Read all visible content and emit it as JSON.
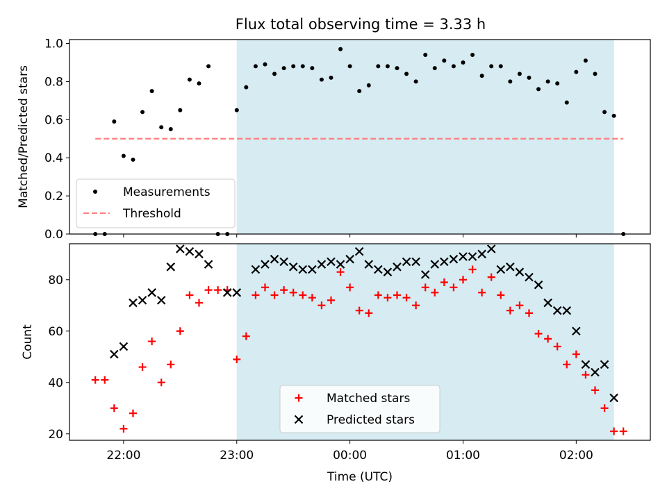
{
  "figure": {
    "title": "Flux total observing time = 3.33 h"
  },
  "chart_data": [
    {
      "type": "scatter",
      "ylabel": "Matched/Predicted stars",
      "ylim": [
        0,
        1.02
      ],
      "yticks": [
        "0.0",
        "0.2",
        "0.4",
        "0.6",
        "0.8",
        "1.0"
      ],
      "ytick_values": [
        0,
        0.2,
        0.4,
        0.6,
        0.8,
        1.0
      ],
      "grid": false,
      "legend_placement": "lower-left",
      "shaded_span": {
        "start_min": 60,
        "end_min": 260,
        "color": "#add8e6"
      },
      "series": [
        {
          "name": "Measurements",
          "marker": "dot",
          "color": "#000000",
          "x_min": [
            -15,
            -10,
            -5,
            0,
            5,
            10,
            15,
            20,
            25,
            30,
            35,
            40,
            45,
            50,
            55,
            60,
            65,
            70,
            75,
            80,
            85,
            90,
            95,
            100,
            105,
            110,
            115,
            120,
            125,
            130,
            135,
            140,
            145,
            150,
            155,
            160,
            165,
            170,
            175,
            180,
            185,
            190,
            195,
            200,
            205,
            210,
            215,
            220,
            225,
            230,
            235,
            240,
            245,
            250,
            255,
            260,
            265
          ],
          "values": [
            0,
            0,
            0.59,
            0.41,
            0.39,
            0.64,
            0.75,
            0.56,
            0.55,
            0.65,
            0.81,
            0.79,
            0.88,
            0,
            0,
            0.65,
            0.77,
            0.88,
            0.89,
            0.84,
            0.87,
            0.88,
            0.88,
            0.87,
            0.81,
            0.82,
            0.97,
            0.88,
            0.75,
            0.78,
            0.88,
            0.88,
            0.87,
            0.84,
            0.8,
            0.94,
            0.87,
            0.91,
            0.88,
            0.9,
            0.94,
            0.83,
            0.88,
            0.88,
            0.8,
            0.84,
            0.82,
            0.76,
            0.8,
            0.79,
            0.69,
            0.85,
            0.91,
            0.84,
            0.64,
            0.62,
            0
          ]
        },
        {
          "name": "Threshold",
          "marker": "dashed-line",
          "color": "#ff7f7f",
          "x_min": [
            -15,
            265
          ],
          "values": [
            0.5,
            0.5
          ]
        }
      ]
    },
    {
      "type": "scatter",
      "xlabel": "Time (UTC)",
      "ylabel": "Count",
      "ylim": [
        17.5,
        94
      ],
      "yticks": [
        "20",
        "40",
        "60",
        "80"
      ],
      "ytick_values": [
        20,
        40,
        60,
        80
      ],
      "xticks": [
        "22:00",
        "23:00",
        "00:00",
        "01:00",
        "02:00"
      ],
      "xtick_values_min": [
        0,
        60,
        120,
        180,
        240
      ],
      "grid": false,
      "legend_placement": "lower-center",
      "shaded_span": {
        "start_min": 60,
        "end_min": 260,
        "color": "#add8e6"
      },
      "series": [
        {
          "name": "Matched stars",
          "marker": "plus",
          "color": "#ff0000",
          "x_min": [
            -15,
            -10,
            -5,
            0,
            5,
            10,
            15,
            20,
            25,
            30,
            35,
            40,
            45,
            50,
            55,
            60,
            65,
            70,
            75,
            80,
            85,
            90,
            95,
            100,
            105,
            110,
            115,
            120,
            125,
            130,
            135,
            140,
            145,
            150,
            155,
            160,
            165,
            170,
            175,
            180,
            185,
            190,
            195,
            200,
            205,
            210,
            215,
            220,
            225,
            230,
            235,
            240,
            245,
            250,
            255,
            260,
            265
          ],
          "values": [
            41,
            41,
            30,
            22,
            28,
            46,
            56,
            40,
            47,
            60,
            74,
            71,
            76,
            76,
            76,
            49,
            58,
            74,
            77,
            74,
            76,
            75,
            74,
            73,
            70,
            72,
            83,
            77,
            68,
            67,
            74,
            73,
            74,
            73,
            70,
            77,
            75,
            79,
            77,
            80,
            84,
            75,
            81,
            74,
            68,
            70,
            67,
            59,
            57,
            54,
            47,
            51,
            43,
            37,
            30,
            21,
            21
          ]
        },
        {
          "name": "Predicted stars",
          "marker": "x",
          "color": "#000000",
          "x_min": [
            -5,
            0,
            5,
            10,
            15,
            20,
            25,
            30,
            35,
            40,
            45,
            55,
            60,
            70,
            75,
            80,
            85,
            90,
            95,
            100,
            105,
            110,
            115,
            120,
            125,
            130,
            135,
            140,
            145,
            150,
            155,
            160,
            165,
            170,
            175,
            180,
            185,
            190,
            195,
            200,
            205,
            210,
            215,
            220,
            225,
            230,
            235,
            240,
            245,
            250,
            255,
            260
          ],
          "values": [
            51,
            54,
            71,
            72,
            75,
            72,
            85,
            92,
            91,
            90,
            86,
            75,
            75,
            84,
            86,
            88,
            87,
            85,
            84,
            84,
            86,
            87,
            86,
            88,
            91,
            86,
            84,
            83,
            85,
            87,
            87,
            82,
            86,
            87,
            88,
            89,
            89,
            90,
            92,
            84,
            85,
            83,
            81,
            78,
            71,
            68,
            68,
            60,
            47,
            44,
            47,
            34
          ]
        }
      ]
    }
  ]
}
